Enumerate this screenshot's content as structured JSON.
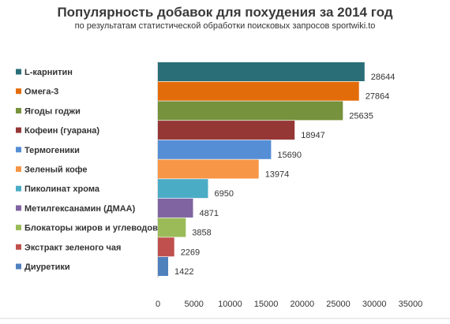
{
  "chart_data": {
    "type": "bar",
    "orientation": "horizontal",
    "title": "Популярность добавок для похудения за 2014 год",
    "subtitle": "по результатам статистической обработки поисковых запросов sportwiki.to",
    "categories": [
      "L-карнитин",
      "Омега-3",
      "Ягоды годжи",
      "Кофеин (гуарана)",
      "Термогеники",
      "Зеленый кофе",
      "Пиколинат хрома",
      "Метилгексанамин (ДМАА)",
      "Блокаторы жиров и углеводов",
      "Экстракт зеленого чая",
      "Диуретики"
    ],
    "values": [
      28644,
      27864,
      25635,
      18947,
      15690,
      13974,
      6950,
      4871,
      3858,
      2269,
      1422
    ],
    "colors": [
      "#2a6e78",
      "#e36c0a",
      "#76923c",
      "#953735",
      "#558ed5",
      "#f79646",
      "#4bacc6",
      "#8064a2",
      "#9bbb59",
      "#c0504d",
      "#4f81bd"
    ],
    "xlim": [
      0,
      35000
    ],
    "xticks": [
      0,
      5000,
      10000,
      15000,
      20000,
      25000,
      30000,
      35000
    ],
    "grid": false,
    "legend": "left"
  }
}
